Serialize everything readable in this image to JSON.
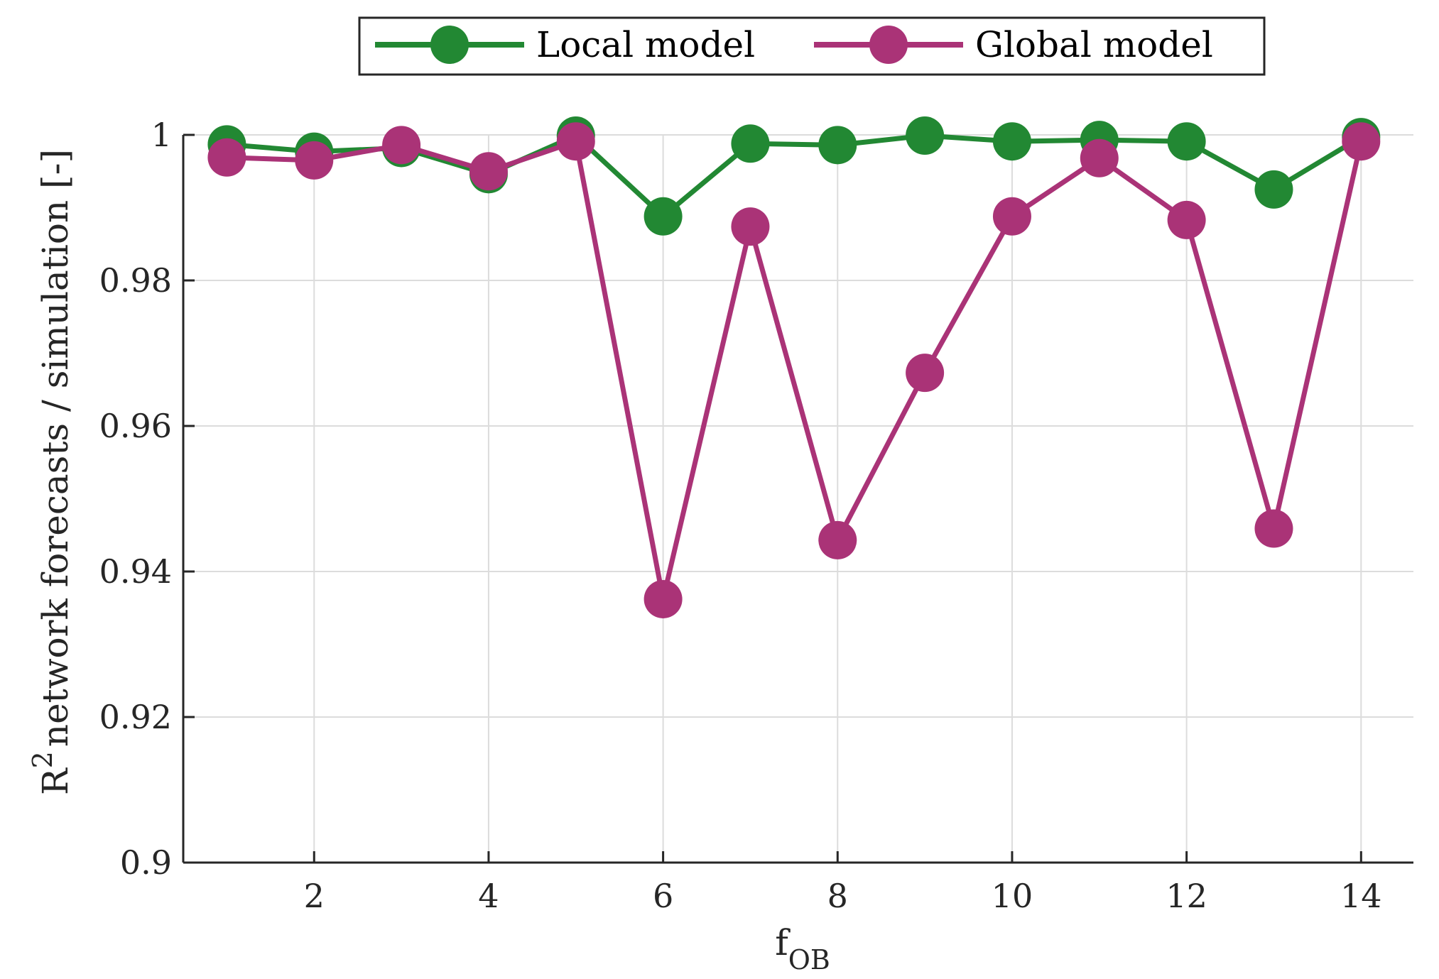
{
  "chart_data": {
    "type": "line",
    "xlabel": "f",
    "xlabel_sub": "OB",
    "ylabel": "network forecasts  / simulation [-]",
    "ylabel_prefix": "R",
    "ylabel_sup": "2",
    "xlim": [
      0.5,
      14.6
    ],
    "ylim": [
      0.9,
      1.0
    ],
    "xticks": [
      2,
      4,
      6,
      8,
      10,
      12,
      14
    ],
    "yticks": [
      0.9,
      0.92,
      0.94,
      0.96,
      0.98,
      1.0
    ],
    "ytick_labels": [
      "0.9",
      "0.92",
      "0.94",
      "0.96",
      "0.98",
      "1"
    ],
    "grid": true,
    "legend_placement": "top-center, outside",
    "x": [
      1,
      2,
      3,
      4,
      5,
      6,
      7,
      8,
      9,
      10,
      11,
      12,
      13,
      14
    ],
    "series": [
      {
        "name": "Local model",
        "color": "#228833",
        "values": [
          0.9987,
          0.9977,
          0.9982,
          0.9946,
          0.9999,
          0.9888,
          0.9988,
          0.9986,
          0.9999,
          0.9991,
          0.9993,
          0.9991,
          0.9925,
          0.9997
        ]
      },
      {
        "name": "Global model",
        "color": "#AA3377",
        "values": [
          0.9969,
          0.9965,
          0.9986,
          0.995,
          0.9991,
          0.9362,
          0.9874,
          0.9443,
          0.9673,
          0.9888,
          0.9968,
          0.9883,
          0.9459,
          0.9991
        ]
      }
    ]
  }
}
